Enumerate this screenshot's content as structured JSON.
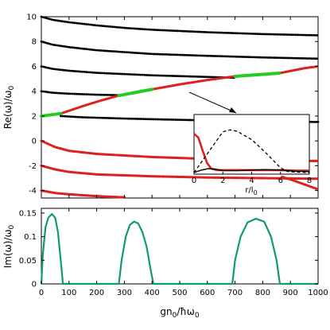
{
  "chart_data": [
    {
      "type": "scatter",
      "ylabel": "Re(ω)/ω",
      "ylabel_sub": "0",
      "xlim": [
        0,
        1000
      ],
      "ylim": [
        -4.6,
        10
      ],
      "yticks": [
        -4,
        -2,
        0,
        2,
        4,
        6,
        8,
        10
      ],
      "grid": false,
      "series": [
        {
          "color": "#000000",
          "role": "stable-branch",
          "points": [
            [
              0,
              10
            ],
            [
              40,
              9.75
            ],
            [
              100,
              9.55
            ],
            [
              200,
              9.3
            ],
            [
              300,
              9.1
            ],
            [
              400,
              8.95
            ],
            [
              600,
              8.75
            ],
            [
              800,
              8.6
            ],
            [
              1000,
              8.5
            ]
          ]
        },
        {
          "color": "#000000",
          "role": "stable-branch",
          "points": [
            [
              0,
              8
            ],
            [
              40,
              7.75
            ],
            [
              100,
              7.55
            ],
            [
              200,
              7.3
            ],
            [
              300,
              7.15
            ],
            [
              400,
              7.0
            ],
            [
              600,
              6.85
            ],
            [
              800,
              6.72
            ],
            [
              1000,
              6.62
            ]
          ]
        },
        {
          "color": "#000000",
          "role": "stable-branch",
          "points": [
            [
              0,
              6
            ],
            [
              40,
              5.8
            ],
            [
              100,
              5.65
            ],
            [
              200,
              5.48
            ],
            [
              300,
              5.38
            ],
            [
              400,
              5.28
            ],
            [
              600,
              5.15
            ],
            [
              700,
              5.08
            ]
          ]
        },
        {
          "color": "#000000",
          "role": "stable-branch",
          "points": [
            [
              0,
              4
            ],
            [
              40,
              3.88
            ],
            [
              100,
              3.8
            ],
            [
              200,
              3.72
            ],
            [
              280,
              3.68
            ]
          ]
        },
        {
          "color": "#000000",
          "role": "stable-branch",
          "points": [
            [
              70,
              2.0
            ],
            [
              150,
              1.9
            ],
            [
              300,
              1.8
            ],
            [
              450,
              1.72
            ],
            [
              600,
              1.65
            ],
            [
              800,
              1.58
            ],
            [
              1000,
              1.52
            ]
          ]
        },
        {
          "color": "#dd2020",
          "role": "anomalous-branch",
          "points": [
            [
              0,
              2
            ],
            [
              70,
              2.2
            ],
            [
              150,
              2.8
            ],
            [
              200,
              3.15
            ],
            [
              280,
              3.65
            ],
            [
              400,
              4.15
            ],
            [
              500,
              4.55
            ],
            [
              600,
              4.9
            ],
            [
              700,
              5.2
            ],
            [
              860,
              5.45
            ],
            [
              950,
              5.85
            ],
            [
              1000,
              6.0
            ]
          ]
        },
        {
          "color": "#dd2020",
          "role": "anomalous-branch",
          "points": [
            [
              0,
              0
            ],
            [
              50,
              -0.5
            ],
            [
              100,
              -0.8
            ],
            [
              200,
              -1.05
            ],
            [
              400,
              -1.3
            ],
            [
              600,
              -1.45
            ],
            [
              800,
              -1.55
            ],
            [
              1000,
              -1.62
            ]
          ]
        },
        {
          "color": "#dd2020",
          "role": "anomalous-branch",
          "points": [
            [
              0,
              -2
            ],
            [
              50,
              -2.3
            ],
            [
              100,
              -2.5
            ],
            [
              200,
              -2.7
            ],
            [
              400,
              -2.85
            ],
            [
              600,
              -2.95
            ],
            [
              800,
              -3.0
            ],
            [
              1000,
              -3.05
            ]
          ]
        },
        {
          "color": "#dd2020",
          "role": "anomalous-branch",
          "points": [
            [
              0,
              -4
            ],
            [
              50,
              -4.2
            ],
            [
              100,
              -4.3
            ],
            [
              200,
              -4.45
            ],
            [
              300,
              -4.55
            ]
          ]
        },
        {
          "color": "#dd2020",
          "role": "anomalous-branch",
          "points": [
            [
              870,
              -2.9
            ],
            [
              900,
              -3.1
            ],
            [
              950,
              -3.5
            ],
            [
              1000,
              -3.9
            ]
          ]
        }
      ],
      "highlight_segments": [
        {
          "color": "#22cc22",
          "points": [
            [
              0,
              2.0
            ],
            [
              70,
              2.2
            ]
          ]
        },
        {
          "color": "#22cc22",
          "points": [
            [
              280,
              3.65
            ],
            [
              400,
              4.15
            ]
          ]
        },
        {
          "color": "#22cc22",
          "points": [
            [
              700,
              5.2
            ],
            [
              860,
              5.45
            ]
          ]
        }
      ],
      "inset": {
        "xlabel": "r/l",
        "xlabel_sub": "0",
        "xlim": [
          0,
          8
        ],
        "ylim": [
          0,
          1
        ],
        "xticks": [
          0,
          2,
          4,
          6,
          8
        ],
        "series": [
          {
            "color": "#dd2020",
            "style": "solid-thick",
            "points": [
              [
                0,
                0.8
              ],
              [
                0.3,
                0.72
              ],
              [
                0.6,
                0.45
              ],
              [
                0.9,
                0.2
              ],
              [
                1.2,
                0.08
              ],
              [
                1.6,
                0.05
              ],
              [
                2.5,
                0.05
              ],
              [
                3.5,
                0.05
              ],
              [
                5,
                0.05
              ],
              [
                6,
                0.05
              ],
              [
                7,
                0.04
              ],
              [
                8,
                0.04
              ]
            ]
          },
          {
            "color": "#000000",
            "style": "dashed",
            "points": [
              [
                0,
                0
              ],
              [
                1,
                0.42
              ],
              [
                2,
                0.84
              ],
              [
                2.5,
                0.88
              ],
              [
                3,
                0.85
              ],
              [
                4,
                0.68
              ],
              [
                5,
                0.4
              ],
              [
                6,
                0.1
              ],
              [
                6.5,
                0.02
              ],
              [
                7,
                0.01
              ],
              [
                8,
                0
              ]
            ]
          },
          {
            "color": "#000000",
            "style": "solid",
            "points": [
              [
                0,
                0
              ],
              [
                0.5,
                0.05
              ],
              [
                1,
                0.08
              ],
              [
                1.5,
                0.07
              ],
              [
                2,
                0.04
              ],
              [
                3,
                0.04
              ],
              [
                4,
                0.05
              ],
              [
                5,
                0.06
              ],
              [
                6,
                0.05
              ],
              [
                7,
                0.03
              ],
              [
                8,
                0.02
              ]
            ]
          }
        ]
      }
    },
    {
      "type": "line",
      "xlabel": "gn",
      "xlabel_sub": "0",
      "xlabel_rest": "/ħω",
      "xlabel_sub2": "0",
      "ylabel": "Im(ω)/ω",
      "ylabel_sub": "0",
      "xlim": [
        0,
        1000
      ],
      "ylim": [
        0,
        0.16
      ],
      "xticks": [
        0,
        100,
        200,
        300,
        400,
        500,
        600,
        700,
        800,
        900,
        1000
      ],
      "yticks": [
        0,
        0.05,
        0.1,
        0.15
      ],
      "series": [
        {
          "color": "#119977",
          "points": [
            [
              0,
              0
            ],
            [
              5,
              0.06
            ],
            [
              15,
              0.12
            ],
            [
              25,
              0.14
            ],
            [
              38,
              0.148
            ],
            [
              50,
              0.14
            ],
            [
              60,
              0.11
            ],
            [
              70,
              0.05
            ],
            [
              78,
              0
            ],
            [
              280,
              0
            ],
            [
              290,
              0.05
            ],
            [
              305,
              0.1
            ],
            [
              320,
              0.125
            ],
            [
              335,
              0.132
            ],
            [
              350,
              0.128
            ],
            [
              365,
              0.11
            ],
            [
              380,
              0.08
            ],
            [
              395,
              0.03
            ],
            [
              405,
              0
            ],
            [
              690,
              0
            ],
            [
              700,
              0.05
            ],
            [
              720,
              0.1
            ],
            [
              745,
              0.13
            ],
            [
              775,
              0.138
            ],
            [
              805,
              0.132
            ],
            [
              830,
              0.1
            ],
            [
              850,
              0.05
            ],
            [
              862,
              0
            ],
            [
              1000,
              0
            ]
          ]
        }
      ]
    }
  ]
}
